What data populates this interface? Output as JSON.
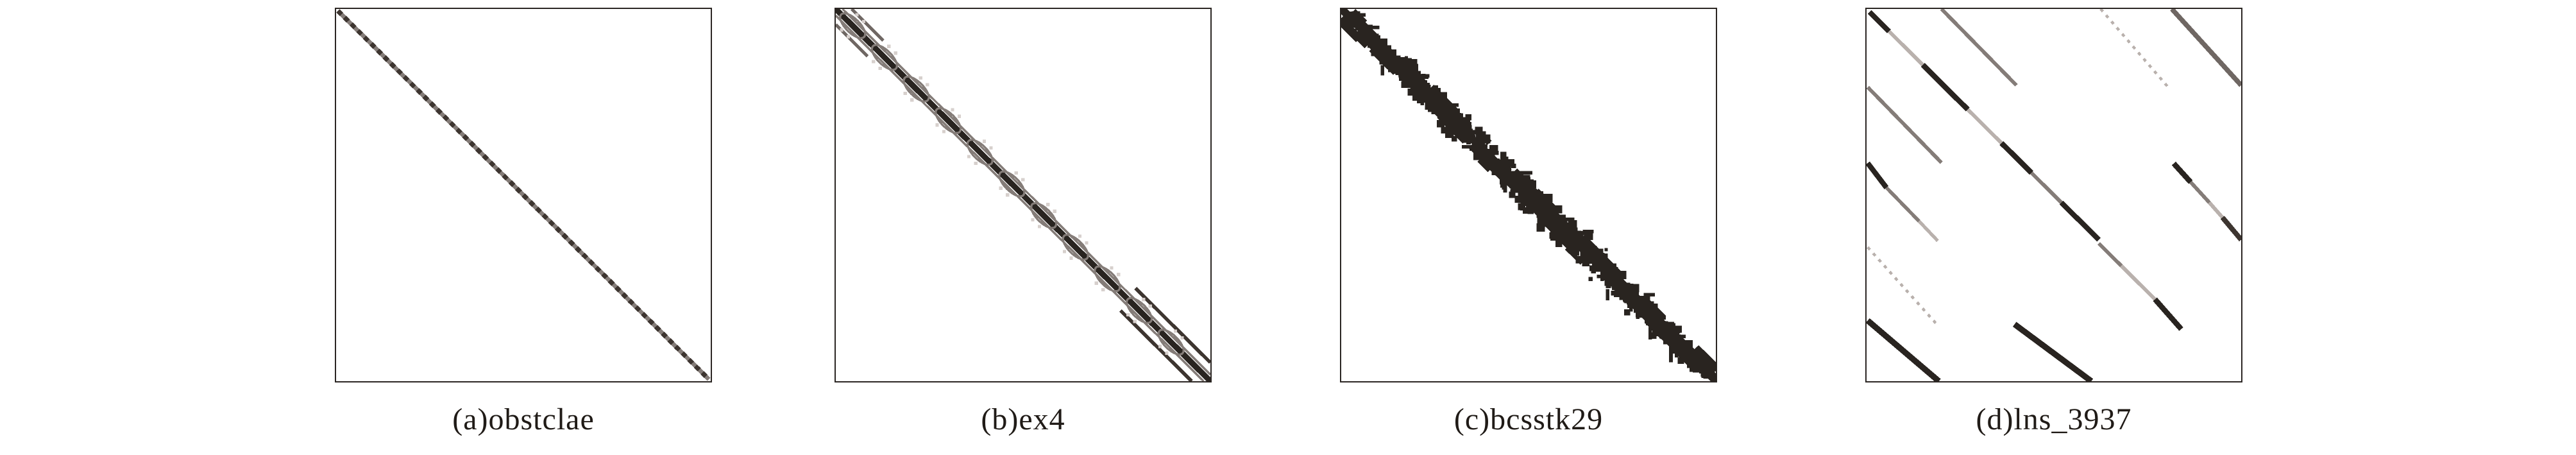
{
  "page": {
    "background": "#ffffff"
  },
  "colors": {
    "black": "#292420",
    "dark": "#3d3530",
    "mid": "#6f6763",
    "gray": "#847c78",
    "light": "#b9b1ad",
    "faint": "#d7d0cd",
    "border": "#2b2623",
    "label": "#201b17"
  },
  "chart_data": {
    "type": "heatmap",
    "subtype": "sparse-matrix-spy-plots",
    "layout": {
      "panels_in_row": 4,
      "frame": "square",
      "grid": false,
      "axes": "none"
    },
    "panels": [
      {
        "label": "(a)obstclae",
        "matrix": "obstclae",
        "pattern": "single thin main diagonal of alternating dark and gray blocks",
        "segments": [
          [
            0.5,
            0.5,
            99.5,
            99.5,
            "gray",
            1.15
          ],
          [
            0.5,
            0.5,
            99.5,
            99.5,
            "dark",
            1.25,
            "1.35 1.15"
          ]
        ]
      },
      {
        "label": "(b)ex4",
        "matrix": "ex4",
        "pattern": "thick dark main diagonal with gray weaving side bands forming periodic lens bulges and faint outer dots",
        "segments": [
          [
            0,
            0,
            100,
            100,
            "black",
            1.55
          ],
          [
            1.8,
            0,
            100,
            98.2,
            "gray",
            0.6
          ],
          [
            0,
            1.8,
            98.2,
            100,
            "gray",
            0.6
          ],
          [
            0,
            4.2,
            8.5,
            12.7,
            "mid",
            0.85
          ],
          [
            4.2,
            0,
            12.7,
            8.5,
            "mid",
            0.85
          ],
          [
            80,
            75,
            100,
            95,
            "dark",
            0.95
          ],
          [
            76,
            81,
            95,
            100,
            "dark",
            0.95
          ]
        ],
        "lenses": [
          4.5,
          13,
          21.5,
          30,
          38.5,
          47,
          55.5,
          64,
          72.5,
          81,
          89.5
        ]
      },
      {
        "label": "(c)bcsstk29",
        "matrix": "bcsstk29",
        "pattern": "dense jagged solid-black band along main diagonal with speckle holes and short spurs",
        "segments": [
          [
            0,
            0,
            100,
            100,
            "black",
            2.0
          ]
        ],
        "speckle": {
          "seed": 9,
          "dots": 640,
          "streaks": 130,
          "ticks": 90,
          "spread": 4.0,
          "dot_min": 0.9,
          "dot_max": 2.4,
          "color": "black"
        }
      },
      {
        "label": "(d)lns_3937",
        "matrix": "lns_3937",
        "pattern": "several short parallel diagonal segments of varying darkness; empty lower-right corner",
        "segments": [
          [
            0.8,
            0.8,
            6,
            6,
            "black",
            1.4
          ],
          [
            6,
            6,
            15,
            15,
            "light",
            1.0
          ],
          [
            15,
            15,
            27,
            27,
            "black",
            1.45
          ],
          [
            27,
            27,
            36,
            36,
            "light",
            1.0
          ],
          [
            36,
            36,
            44,
            44,
            "black",
            1.45
          ],
          [
            44,
            44,
            52,
            52,
            "gray",
            1.0
          ],
          [
            52,
            52,
            62,
            62,
            "black",
            1.4
          ],
          [
            62,
            63,
            68,
            69,
            "gray",
            1.0
          ],
          [
            68,
            69,
            77,
            78,
            "light",
            1.0
          ],
          [
            77,
            78,
            84,
            86,
            "black",
            1.45
          ],
          [
            20,
            0,
            40,
            20.5,
            "gray",
            1.0
          ],
          [
            62.5,
            0,
            80.5,
            21,
            "light",
            0.75,
            "0.9 1.3"
          ],
          [
            81.5,
            0,
            100,
            20.5,
            "mid",
            1.3
          ],
          [
            82,
            41.5,
            86.5,
            46.5,
            "black",
            1.45
          ],
          [
            86.5,
            46.5,
            91.5,
            52,
            "gray",
            1.0
          ],
          [
            91.5,
            52,
            95,
            56,
            "light",
            1.0
          ],
          [
            95,
            56,
            100,
            62,
            "dark",
            1.35
          ],
          [
            0.3,
            21,
            20,
            41.3,
            "gray",
            1.0
          ],
          [
            0.3,
            41.4,
            5.3,
            48,
            "black",
            1.4
          ],
          [
            5.3,
            48,
            14,
            57,
            "gray",
            0.95
          ],
          [
            14,
            57,
            19,
            62.3,
            "light",
            0.9
          ],
          [
            0.3,
            64,
            19,
            85,
            "light",
            0.75,
            "0.9 1.3"
          ],
          [
            0.3,
            83.7,
            19.3,
            100,
            "black",
            1.6
          ],
          [
            39.5,
            84.7,
            60,
            100,
            "black",
            1.6
          ]
        ]
      }
    ]
  }
}
